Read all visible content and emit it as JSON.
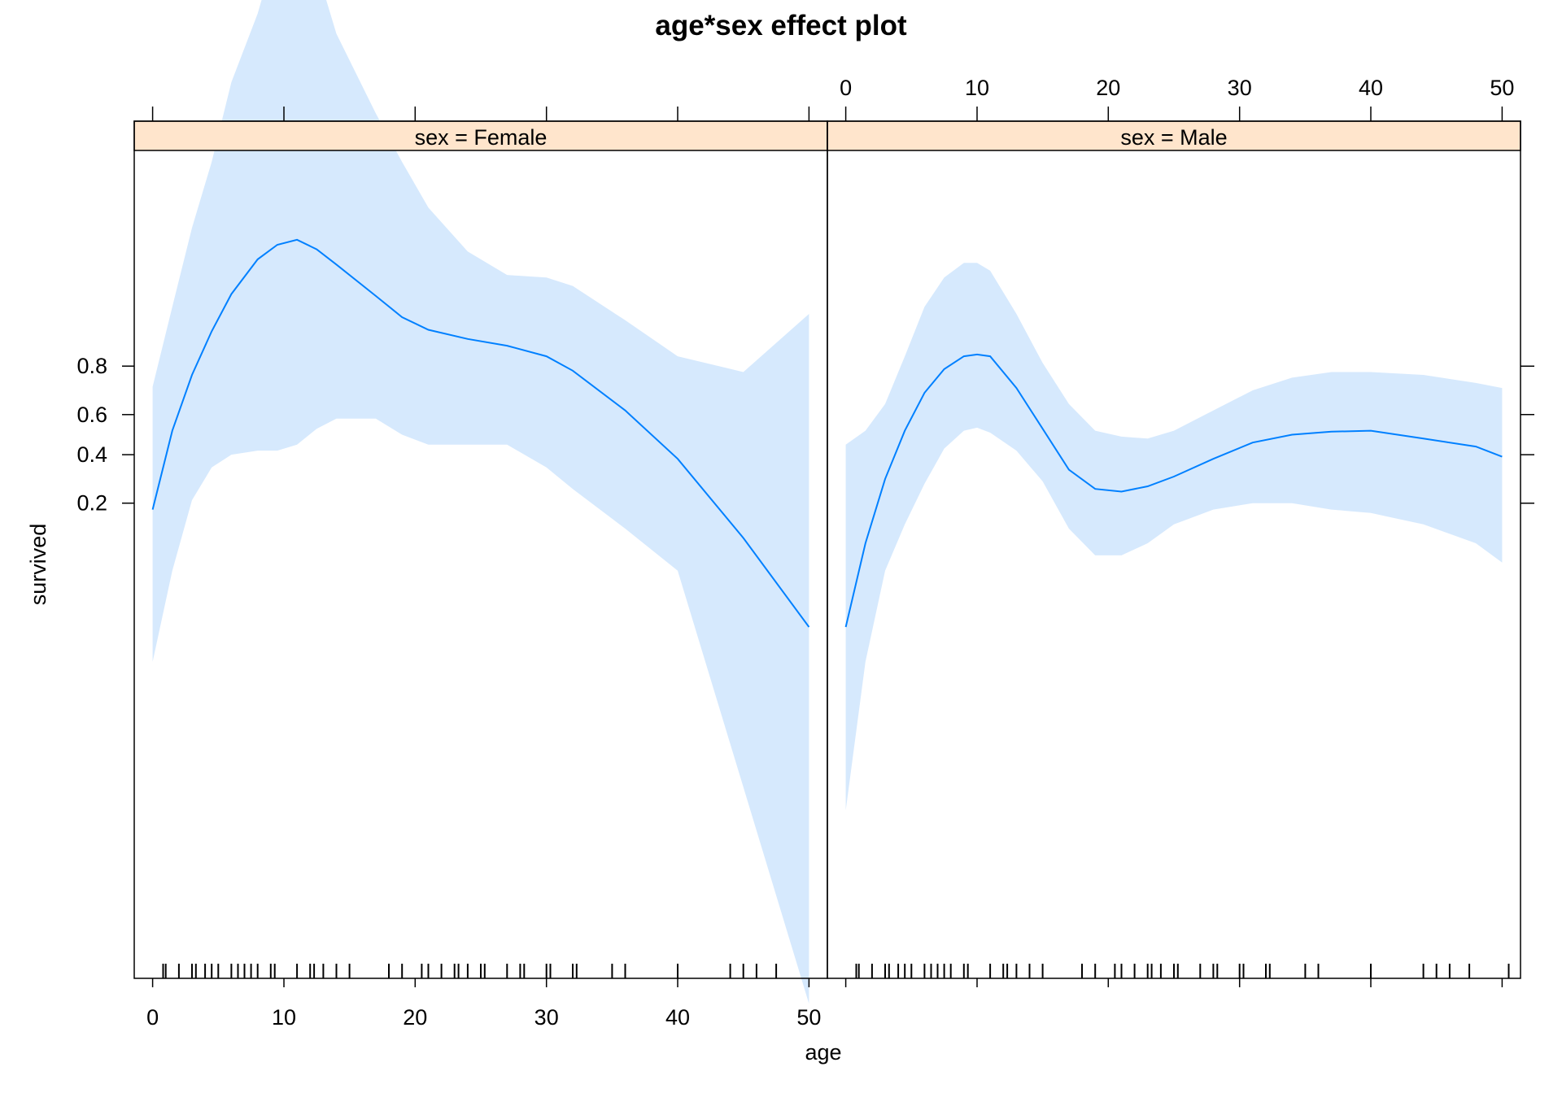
{
  "chart_data": {
    "type": "line",
    "title": "age*sex effect plot",
    "xlabel": "age",
    "ylabel": "survived",
    "xlim": [
      -1.4,
      51.4
    ],
    "x_ticks": [
      "0",
      "10",
      "20",
      "30",
      "40",
      "50"
    ],
    "y_scale": "logit",
    "y_ticks": [
      "0.2",
      "0.4",
      "0.6",
      "0.8"
    ],
    "colors": {
      "line": "#0080ff",
      "band": "#d6e9fd",
      "strip": "#ffe5cc",
      "border": "#000000",
      "rug": "#000000"
    },
    "panels": [
      {
        "strip": "sex = Female",
        "x": [
          0,
          1.5,
          3,
          4.5,
          6,
          8,
          9.5,
          11,
          12.5,
          14,
          17,
          19,
          21,
          24,
          27,
          30,
          32,
          36,
          40,
          45,
          50
        ],
        "fit": [
          0.18,
          0.52,
          0.77,
          0.89,
          0.945,
          0.972,
          0.979,
          0.981,
          0.977,
          0.969,
          0.943,
          0.915,
          0.893,
          0.874,
          0.858,
          0.83,
          0.785,
          0.62,
          0.38,
          0.11,
          0.02
        ],
        "lower": [
          0.01,
          0.06,
          0.21,
          0.34,
          0.4,
          0.42,
          0.42,
          0.45,
          0.53,
          0.58,
          0.58,
          0.5,
          0.45,
          0.45,
          0.45,
          0.34,
          0.25,
          0.13,
          0.06,
          0.0008,
          1e-05
        ],
        "upper": [
          0.725,
          0.93,
          0.985,
          0.996,
          0.9992,
          0.9998,
          0.99995,
          0.99997,
          0.99992,
          0.9997,
          0.9985,
          0.996,
          0.99,
          0.976,
          0.962,
          0.96,
          0.953,
          0.91,
          0.83,
          0.78,
          0.92
        ],
        "rug": [
          0.8,
          1,
          2,
          3,
          3.3,
          4,
          4.5,
          5,
          6,
          6.5,
          7,
          7.5,
          8,
          9,
          9.3,
          11,
          12,
          12.3,
          13,
          14,
          15,
          18,
          19,
          20.5,
          21,
          22,
          23,
          23.3,
          24,
          25,
          25.3,
          27,
          28,
          28.3,
          30,
          30.3,
          32,
          32.3,
          35,
          36,
          40,
          44,
          45,
          46,
          47.5
        ]
      },
      {
        "strip": "sex = Male",
        "x": [
          0,
          1.5,
          3,
          4.5,
          6,
          7.5,
          9,
          10,
          11,
          13,
          15,
          17,
          19,
          21,
          23,
          25,
          28,
          31,
          34,
          37,
          40,
          44,
          48,
          50
        ],
        "fit": [
          0.02,
          0.1,
          0.29,
          0.52,
          0.7,
          0.79,
          0.83,
          0.835,
          0.83,
          0.72,
          0.53,
          0.33,
          0.25,
          0.24,
          0.26,
          0.3,
          0.38,
          0.46,
          0.5,
          0.515,
          0.52,
          0.48,
          0.44,
          0.39
        ],
        "lower": [
          0.0005,
          0.01,
          0.06,
          0.14,
          0.27,
          0.43,
          0.52,
          0.535,
          0.51,
          0.42,
          0.28,
          0.13,
          0.08,
          0.08,
          0.1,
          0.14,
          0.18,
          0.2,
          0.2,
          0.18,
          0.17,
          0.14,
          0.1,
          0.07
        ],
        "upper": [
          0.45,
          0.52,
          0.65,
          0.83,
          0.93,
          0.96,
          0.97,
          0.97,
          0.965,
          0.92,
          0.81,
          0.65,
          0.52,
          0.49,
          0.48,
          0.52,
          0.62,
          0.71,
          0.76,
          0.78,
          0.78,
          0.77,
          0.74,
          0.72
        ],
        "rug": [
          0.8,
          1,
          2,
          3,
          3.3,
          4,
          4.5,
          5,
          6,
          6.5,
          7,
          7.5,
          8,
          9,
          9.3,
          11,
          12,
          12.3,
          13,
          14,
          15,
          18,
          19,
          20.5,
          21,
          22,
          23,
          23.3,
          24,
          25,
          25.3,
          27,
          28,
          28.3,
          30,
          30.3,
          32,
          32.3,
          35,
          36,
          40,
          44,
          45,
          46,
          47.5,
          50.5
        ]
      }
    ]
  }
}
